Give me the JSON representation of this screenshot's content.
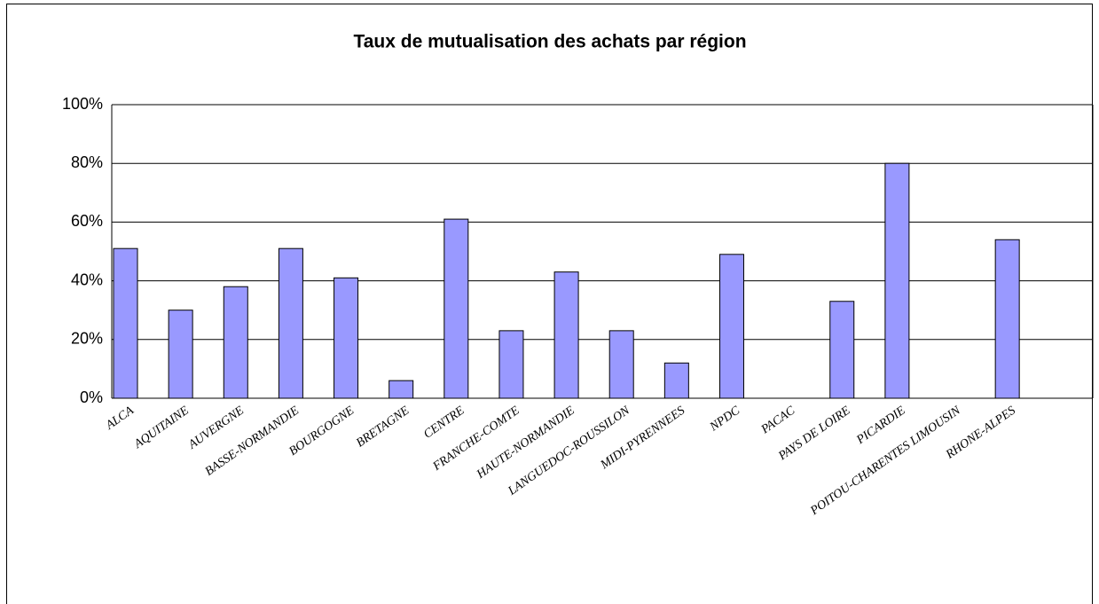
{
  "chart_data": {
    "type": "bar",
    "title": "Taux de mutualisation des achats par région",
    "categories": [
      "ALCA",
      "AQUITAINE",
      "AUVERGNE",
      "BASSE-NORMANDIE",
      "BOURGOGNE",
      "BRETAGNE",
      "CENTRE",
      "FRANCHE-COMTE",
      "HAUTE-NORMANDIE",
      "LANGUEDOC-ROUSSILON",
      "MIDI-PYRENNEES",
      "NPDC",
      "PACAC",
      "PAYS DE LOIRE",
      "PICARDIE",
      "POITOU-CHARENTES LIMOUSIN",
      "RHONE-ALPES"
    ],
    "values": [
      51,
      30,
      38,
      51,
      41,
      6,
      61,
      23,
      43,
      23,
      12,
      49,
      0,
      33,
      80,
      0,
      54
    ],
    "color": "#9999ff",
    "ylim": [
      0,
      100
    ],
    "yticks": [
      {
        "value": 0,
        "label": "0%"
      },
      {
        "value": 20,
        "label": "20%"
      },
      {
        "value": 40,
        "label": "40%"
      },
      {
        "value": 60,
        "label": "60%"
      },
      {
        "value": 80,
        "label": "80%"
      },
      {
        "value": 100,
        "label": "100%"
      }
    ],
    "grid": true
  }
}
